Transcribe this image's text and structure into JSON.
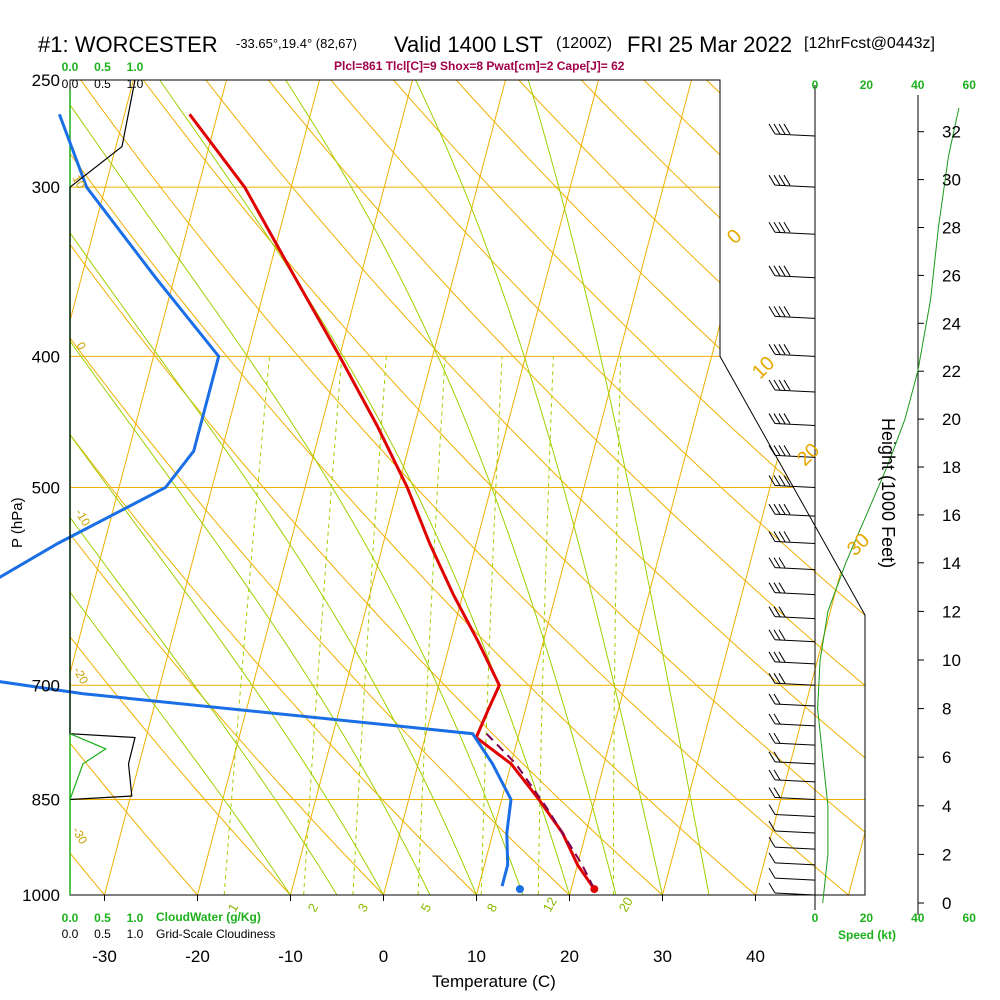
{
  "header": {
    "station": "#1: WORCESTER",
    "coords": "-33.65°,19.4° (82,67)",
    "valid": "Valid 1400 LST",
    "zulu": "(1200Z)",
    "date": "FRI 25 Mar 2022",
    "forecast": "[12hrFcst@0443z]",
    "indices": "Plcl=861 Tlcl[C]=9 Shox=8 Pwat[cm]=2 Cape[J]= 62"
  },
  "labels": {
    "pressure_axis": "P (hPa)",
    "temperature_axis": "Temperature (C)",
    "height_axis": "Height (1000 Feet)",
    "speed_axis": "Speed (kt)",
    "cloudwater": "CloudWater (g/Kg)",
    "cloudiness": "Grid-Scale Cloudiness"
  },
  "colors": {
    "isobar": "#f0b000",
    "isotherm": "#f0b000",
    "dry_adiabat": "#f0b000",
    "moist_adiabat": "#9ed000",
    "mixing_ratio": "#9ed000",
    "temperature": "#e00000",
    "dewpoint": "#1a6ee6",
    "parcel": "#800050",
    "green_text": "#1db01d"
  },
  "chart_data": {
    "type": "skew-t",
    "title": "#1: WORCESTER -33.65°,19.4° (82,67) Valid 1400 LST (1200Z) FRI 25 Mar 2022 [12hrFcst@0443z]",
    "subtitle": "Plcl=861 Tlcl[C]=9 Shox=8 Pwat[cm]=2 Cape[J]= 62",
    "xlabel": "Temperature (C)",
    "ylabel": "P (hPa)",
    "y2label": "Height (1000 Feet)",
    "x_ticks": [
      -30,
      -20,
      -10,
      0,
      10,
      20,
      30,
      40
    ],
    "p_ticks": [
      250,
      300,
      400,
      500,
      700,
      850,
      1000
    ],
    "height_ticks": [
      0,
      2,
      4,
      6,
      8,
      10,
      12,
      14,
      16,
      18,
      20,
      22,
      24,
      26,
      28,
      30,
      32
    ],
    "speed_ticks": [
      0,
      20,
      40,
      60
    ],
    "cloud_ticks": [
      "0.0",
      "0.5",
      "1.0"
    ],
    "isotherm_labels": [
      "0",
      "10",
      "20",
      "30"
    ],
    "dry_adiabat_labels": [
      "10",
      "0",
      "-10",
      "-20",
      "-30"
    ],
    "mixing_ratio_labels": [
      "1",
      "2",
      "3",
      "5",
      "8",
      "12",
      "20"
    ],
    "temperature_series": [
      {
        "p": 265,
        "t": -43
      },
      {
        "p": 300,
        "t": -35
      },
      {
        "p": 350,
        "t": -27
      },
      {
        "p": 400,
        "t": -20
      },
      {
        "p": 450,
        "t": -14
      },
      {
        "p": 500,
        "t": -9
      },
      {
        "p": 550,
        "t": -5
      },
      {
        "p": 600,
        "t": -1
      },
      {
        "p": 650,
        "t": 3
      },
      {
        "p": 700,
        "t": 6.5
      },
      {
        "p": 730,
        "t": 6
      },
      {
        "p": 765,
        "t": 5.5
      },
      {
        "p": 800,
        "t": 10
      },
      {
        "p": 850,
        "t": 14
      },
      {
        "p": 900,
        "t": 17.5
      },
      {
        "p": 950,
        "t": 20
      },
      {
        "p": 990,
        "t": 22.5
      }
    ],
    "dewpoint_series": [
      {
        "p": 265,
        "t": -57
      },
      {
        "p": 300,
        "t": -52
      },
      {
        "p": 350,
        "t": -42
      },
      {
        "p": 400,
        "t": -33
      },
      {
        "p": 430,
        "t": -33
      },
      {
        "p": 470,
        "t": -33
      },
      {
        "p": 500,
        "t": -35
      },
      {
        "p": 550,
        "t": -45
      },
      {
        "p": 600,
        "t": -53
      },
      {
        "p": 650,
        "t": -57
      },
      {
        "p": 690,
        "t": -51
      },
      {
        "p": 710,
        "t": -38
      },
      {
        "p": 760,
        "t": 5
      },
      {
        "p": 800,
        "t": 8
      },
      {
        "p": 850,
        "t": 11
      },
      {
        "p": 900,
        "t": 11.5
      },
      {
        "p": 950,
        "t": 12.5
      },
      {
        "p": 985,
        "t": 12.5
      }
    ],
    "parcel_series": [
      {
        "p": 760,
        "t": 6.5
      },
      {
        "p": 800,
        "t": 10.5
      },
      {
        "p": 861,
        "t": 15
      },
      {
        "p": 900,
        "t": 17.5
      },
      {
        "p": 950,
        "t": 20.5
      },
      {
        "p": 990,
        "t": 22.5
      }
    ],
    "surface": {
      "p": 990,
      "t": 22.5,
      "td": 14.5
    },
    "height_profile": [
      {
        "speed": 3,
        "h": 0
      },
      {
        "speed": 5,
        "h": 2
      },
      {
        "speed": 5,
        "h": 4
      },
      {
        "speed": 3,
        "h": 6
      },
      {
        "speed": 1,
        "h": 8
      },
      {
        "speed": 2,
        "h": 10
      },
      {
        "speed": 5,
        "h": 12
      },
      {
        "speed": 12,
        "h": 14
      },
      {
        "speed": 20,
        "h": 16
      },
      {
        "speed": 28,
        "h": 18
      },
      {
        "speed": 35,
        "h": 20
      },
      {
        "speed": 40,
        "h": 22
      },
      {
        "speed": 45,
        "h": 25
      },
      {
        "speed": 48,
        "h": 28
      },
      {
        "speed": 52,
        "h": 31
      },
      {
        "speed": 56,
        "h": 33
      }
    ],
    "cloudiness_profile": [
      {
        "p": 250,
        "c": 1.0
      },
      {
        "p": 280,
        "c": 0.8
      },
      {
        "p": 300,
        "c": 0.0
      },
      {
        "p": 760,
        "c": 0.0
      },
      {
        "p": 765,
        "c": 1.0
      },
      {
        "p": 800,
        "c": 0.9
      },
      {
        "p": 845,
        "c": 0.95
      },
      {
        "p": 850,
        "c": 0.0
      }
    ],
    "cloudwater_profile": [
      {
        "p": 760,
        "c": 0.0
      },
      {
        "p": 780,
        "c": 0.55
      },
      {
        "p": 800,
        "c": 0.2
      },
      {
        "p": 850,
        "c": 0.0
      }
    ]
  }
}
